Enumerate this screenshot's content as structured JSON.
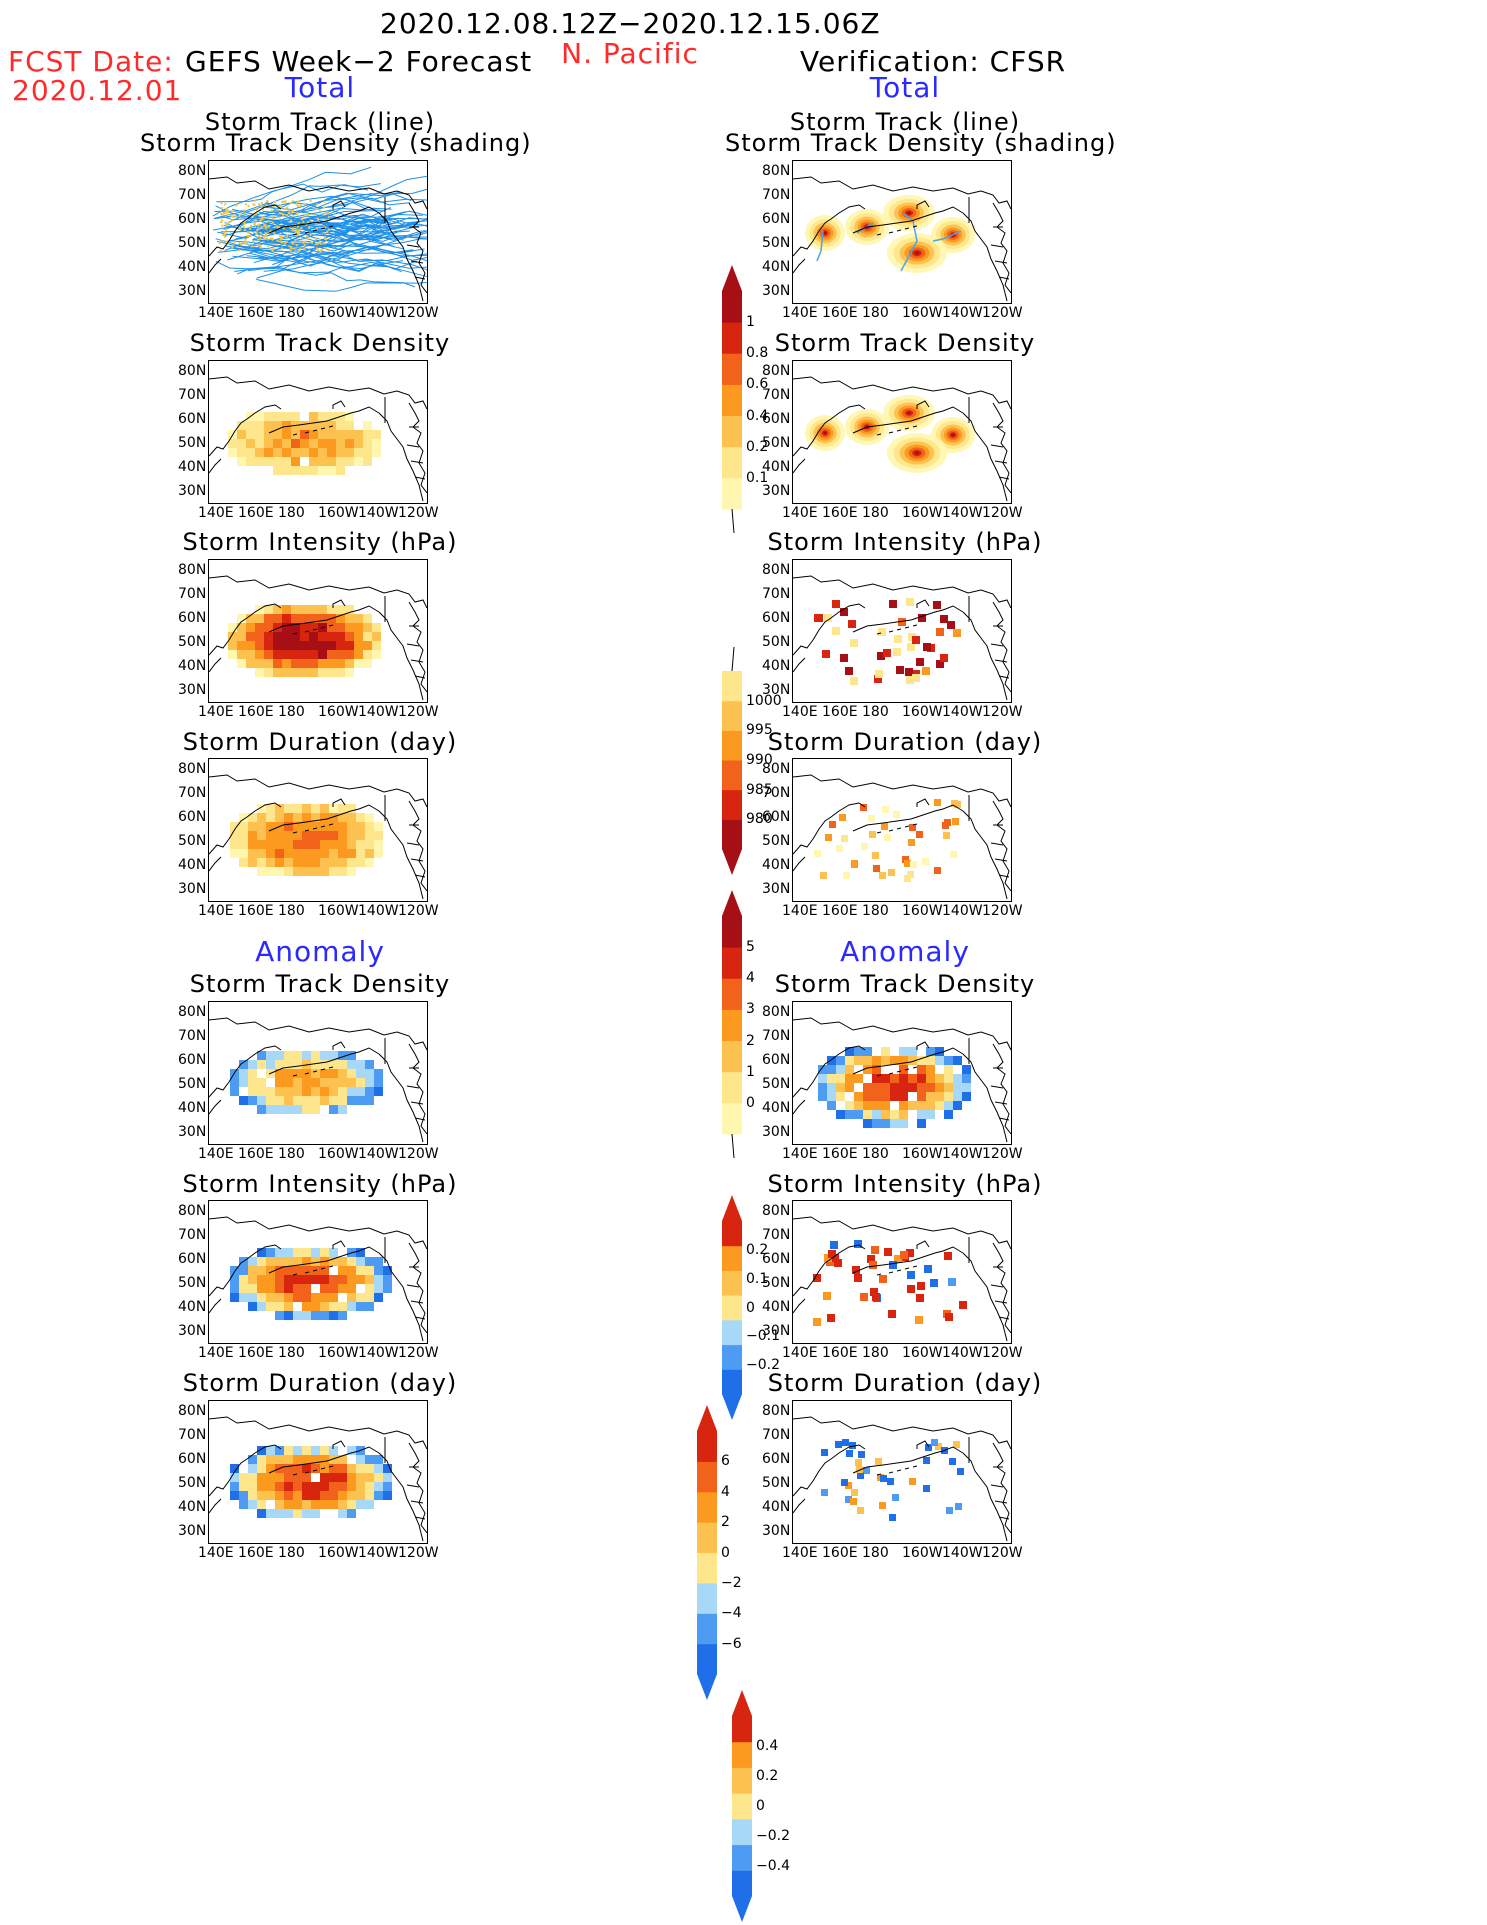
{
  "header": {
    "period": "2020.12.08.12Z−2020.12.15.06Z",
    "region": "N. Pacific",
    "fcst_label": "FCST Date:",
    "fcst_date": "2020.12.01",
    "left_title": "GEFS Week−2 Forecast",
    "right_title": "Verification: CFSR",
    "total_label": "Total",
    "anomaly_label": "Anomaly"
  },
  "panel_titles": {
    "track_line": "Storm Track (line)",
    "track_shading": "Storm Track Density (shading)",
    "density": "Storm Track Density",
    "intensity": "Storm Intensity (hPa)",
    "duration": "Storm Duration (day)"
  },
  "axes": {
    "lat_labels": [
      "80N",
      "70N",
      "60N",
      "50N",
      "40N",
      "30N"
    ],
    "lon_labels": [
      "140E",
      "160E",
      "180",
      "160W",
      "140W",
      "120W"
    ]
  },
  "colorbars": {
    "density_total": [
      "0.1",
      "0.2",
      "0.4",
      "0.6",
      "0.8",
      "1"
    ],
    "intensity_total": [
      "1000",
      "995",
      "990",
      "985",
      "980"
    ],
    "duration_total": [
      "0",
      "1",
      "2",
      "3",
      "4",
      "5"
    ],
    "density_anom": [
      "−0.2",
      "−0.1",
      "0",
      "0.1",
      "0.2"
    ],
    "intensity_anom": [
      "−6",
      "−4",
      "−2",
      "0",
      "2",
      "4",
      "6"
    ],
    "duration_anom": [
      "−0.4",
      "−0.2",
      "0",
      "0.2",
      "0.4"
    ]
  },
  "colors": {
    "warm": [
      "#fff7b0",
      "#fee68c",
      "#fdc14f",
      "#fb9a1e",
      "#f2621a",
      "#d7250f",
      "#a50f15"
    ],
    "diverging": [
      "#1e6fe8",
      "#4e9bf4",
      "#a8d8f8",
      "#fee68c",
      "#fdc14f",
      "#fb9a1e",
      "#f2621a",
      "#d7250f"
    ],
    "track_line": "#1e90e8"
  }
}
